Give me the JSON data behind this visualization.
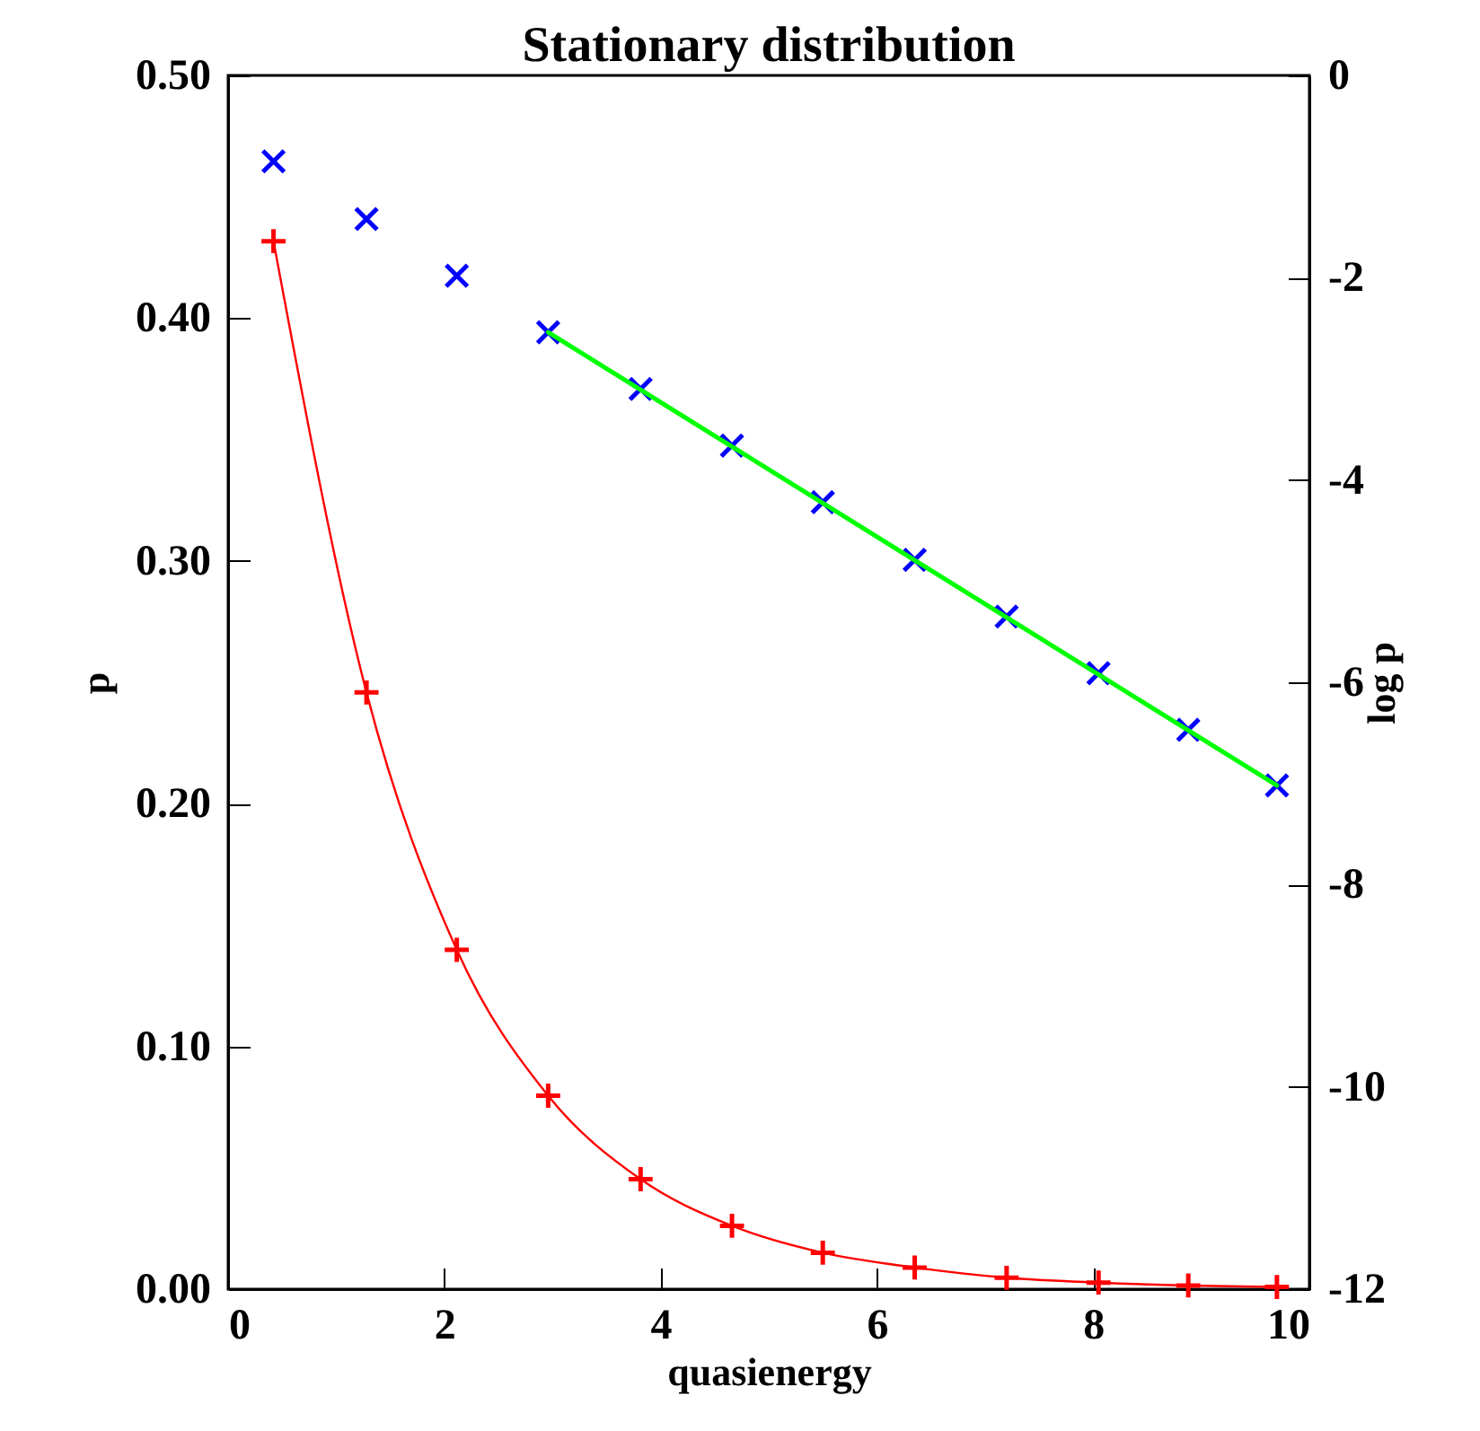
{
  "chart_data": {
    "type": "line",
    "title": "Stationary distribution",
    "xlabel": "quasienergy",
    "ylabel": "p",
    "y2label": "log p",
    "x": [
      0.42,
      1.28,
      2.115,
      2.96,
      3.815,
      4.66,
      5.5,
      6.35,
      7.2,
      8.05,
      8.88,
      9.7
    ],
    "series": [
      {
        "type": "line",
        "color": "#ff0000",
        "marker": "cross",
        "values": [
          0.4317,
          0.2458,
          0.1398,
          0.0797,
          0.0453,
          0.0261,
          0.015,
          0.0089,
          0.0047,
          0.0027,
          0.0015,
          0.0009
        ]
      },
      {
        "type": "scatter",
        "axis": "y2",
        "color": "#0000ff",
        "marker": "x",
        "values": [
          -0.85,
          -1.42,
          -1.98,
          -2.54,
          -3.1,
          -3.66,
          -4.22,
          -4.79,
          -5.35,
          -5.91,
          -6.47,
          -7.02
        ]
      },
      {
        "type": "line",
        "axis": "y2",
        "color": "#00ff00",
        "marker": "none",
        "x": [
          2.96,
          9.7
        ],
        "values": [
          -2.54,
          -7.02
        ]
      }
    ],
    "xlim": [
      0,
      10
    ],
    "xticks": [
      0,
      2,
      4,
      6,
      8,
      10
    ],
    "ylim": [
      0,
      0.5
    ],
    "yticks": [
      {
        "value": 0,
        "label": "0.00"
      },
      {
        "value": 0.1,
        "label": "0.10"
      },
      {
        "value": 0.2,
        "label": "0.20"
      },
      {
        "value": 0.3,
        "label": "0.30"
      },
      {
        "value": 0.4,
        "label": "0.40"
      },
      {
        "value": 0.5,
        "label": "0.50"
      }
    ],
    "y2lim": [
      -12,
      0
    ],
    "y2ticks": [
      -12,
      -10,
      -8,
      -6,
      -4,
      -2,
      0
    ]
  }
}
